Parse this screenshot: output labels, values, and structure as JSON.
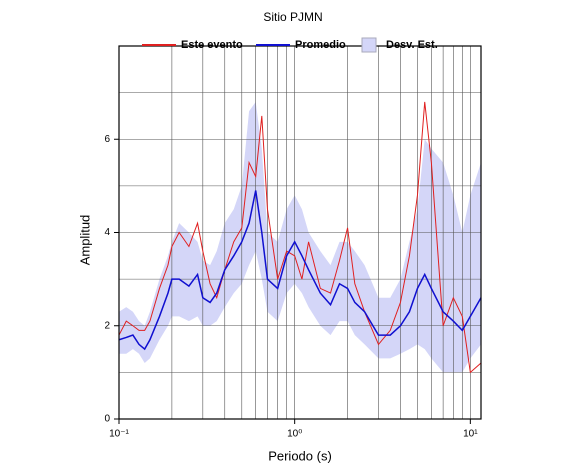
{
  "chart_data": {
    "type": "line",
    "title": "Sitio PJMN",
    "x_label": "Periodo (s)",
    "y_label": "Amplitud",
    "log_x": true,
    "grid": true,
    "legend": "top",
    "xlim": [
      0.1,
      11.5
    ],
    "ylim": [
      0,
      8
    ],
    "xticks": [
      {
        "value": 0.1,
        "label": "10⁻¹"
      },
      {
        "value": 1,
        "label": "10⁰"
      },
      {
        "value": 10,
        "label": "10¹"
      }
    ],
    "xminor": [
      0.2,
      0.3,
      0.4,
      0.5,
      0.6,
      0.7,
      0.8,
      0.9,
      2,
      3,
      4,
      5,
      6,
      7,
      8,
      9
    ],
    "yticks": [
      0,
      2,
      4,
      6
    ],
    "yminor": [
      1,
      3,
      5,
      7
    ],
    "x": [
      0.1,
      0.11,
      0.12,
      0.13,
      0.14,
      0.15,
      0.17,
      0.19,
      0.2,
      0.22,
      0.25,
      0.28,
      0.3,
      0.33,
      0.36,
      0.4,
      0.45,
      0.5,
      0.55,
      0.6,
      0.65,
      0.7,
      0.8,
      0.9,
      1.0,
      1.1,
      1.2,
      1.4,
      1.6,
      1.8,
      2.0,
      2.2,
      2.5,
      3.0,
      3.5,
      4.0,
      4.5,
      5.0,
      5.5,
      6.0,
      7.0,
      8.0,
      9.0,
      10,
      11.5
    ],
    "series": [
      {
        "name": "Este evento",
        "color": "#e02020",
        "values": [
          1.8,
          2.1,
          2.0,
          1.9,
          1.9,
          2.1,
          2.8,
          3.3,
          3.7,
          4.0,
          3.7,
          4.2,
          3.6,
          2.9,
          2.6,
          3.2,
          3.8,
          4.1,
          5.5,
          5.2,
          6.5,
          4.5,
          3.0,
          3.6,
          3.5,
          3.0,
          3.8,
          2.8,
          2.7,
          3.4,
          4.1,
          2.9,
          2.3,
          1.6,
          1.9,
          2.5,
          3.5,
          4.8,
          6.8,
          5.5,
          2.0,
          2.6,
          2.2,
          1.0,
          1.2
        ]
      },
      {
        "name": "Promedio",
        "color": "#1010d0",
        "values": [
          1.7,
          1.75,
          1.8,
          1.6,
          1.5,
          1.7,
          2.2,
          2.7,
          3.0,
          3.0,
          2.85,
          3.1,
          2.6,
          2.5,
          2.7,
          3.2,
          3.5,
          3.8,
          4.2,
          4.9,
          4.0,
          3.0,
          2.8,
          3.5,
          3.8,
          3.5,
          3.2,
          2.7,
          2.45,
          2.9,
          2.8,
          2.5,
          2.3,
          1.8,
          1.8,
          2.0,
          2.3,
          2.8,
          3.1,
          2.8,
          2.3,
          2.1,
          1.9,
          2.2,
          2.6
        ]
      }
    ],
    "band": {
      "name": "Desv. Est.",
      "color": "#d4d6f8",
      "lower": [
        1.4,
        1.4,
        1.5,
        1.4,
        1.2,
        1.3,
        1.7,
        2.0,
        2.2,
        2.2,
        2.1,
        2.2,
        2.0,
        2.0,
        2.1,
        2.4,
        2.7,
        2.9,
        3.3,
        3.6,
        3.0,
        2.3,
        2.1,
        2.7,
        2.9,
        2.7,
        2.4,
        2.0,
        1.8,
        2.1,
        2.1,
        1.8,
        1.6,
        1.3,
        1.3,
        1.4,
        1.5,
        1.6,
        1.5,
        1.3,
        1.0,
        1.0,
        1.0,
        1.3,
        1.6
      ],
      "upper": [
        2.3,
        2.4,
        2.3,
        2.1,
        2.0,
        2.3,
        3.0,
        3.5,
        3.8,
        4.2,
        4.0,
        3.8,
        3.4,
        3.3,
        3.6,
        4.2,
        4.5,
        5.0,
        6.6,
        6.8,
        5.8,
        4.0,
        3.8,
        4.5,
        4.8,
        4.5,
        4.0,
        3.6,
        3.3,
        3.8,
        3.8,
        3.6,
        3.3,
        2.6,
        2.6,
        3.0,
        3.8,
        4.5,
        6.0,
        5.8,
        5.5,
        4.8,
        4.0,
        4.8,
        5.5
      ]
    }
  }
}
